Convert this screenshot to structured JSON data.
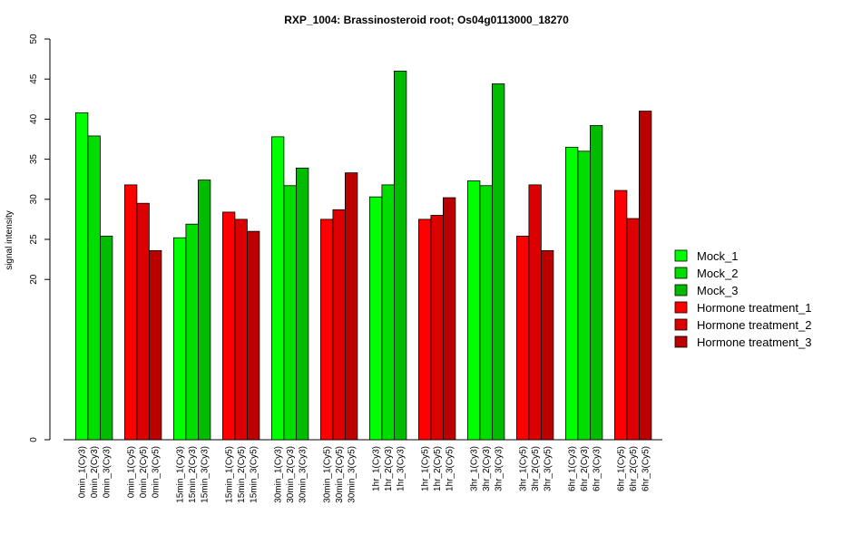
{
  "chart_data": {
    "type": "bar",
    "title": "RXP_1004: Brassinosteroid root; Os04g0113000_18270",
    "ylabel": "signal intensity",
    "xlabel": "",
    "y_ticks": [
      0,
      20,
      25,
      30,
      35,
      40,
      45,
      50
    ],
    "ylim": [
      0,
      50
    ],
    "grid": false,
    "legend_position": "right",
    "series": [
      {
        "name": "Mock_1",
        "color": "#00ff00"
      },
      {
        "name": "Mock_2",
        "color": "#00dd00"
      },
      {
        "name": "Mock_3",
        "color": "#00bb00"
      },
      {
        "name": "Hormone treatment_1",
        "color": "#ff0000"
      },
      {
        "name": "Hormone treatment_2",
        "color": "#dd0000"
      },
      {
        "name": "Hormone treatment_3",
        "color": "#bb0000"
      }
    ],
    "groups": [
      {
        "series": [
          0,
          1,
          2
        ],
        "labels": [
          "0min_1(Cy3)",
          "0min_2(Cy3)",
          "0min_3(Cy3)"
        ],
        "values": [
          40.8,
          37.9,
          25.4
        ]
      },
      {
        "series": [
          3,
          4,
          5
        ],
        "labels": [
          "0min_1(Cy5)",
          "0min_2(Cy5)",
          "0min_3(Cy5)"
        ],
        "values": [
          31.8,
          29.5,
          23.6
        ]
      },
      {
        "series": [
          0,
          1,
          2
        ],
        "labels": [
          "15min_1(Cy3)",
          "15min_2(Cy3)",
          "15min_3(Cy3)"
        ],
        "values": [
          25.2,
          26.9,
          32.4
        ]
      },
      {
        "series": [
          3,
          4,
          5
        ],
        "labels": [
          "15min_1(Cy5)",
          "15min_2(Cy5)",
          "15min_3(Cy5)"
        ],
        "values": [
          28.4,
          27.5,
          26.0
        ]
      },
      {
        "series": [
          0,
          1,
          2
        ],
        "labels": [
          "30min_1(Cy3)",
          "30min_2(Cy3)",
          "30min_3(Cy3)"
        ],
        "values": [
          37.8,
          31.7,
          33.9
        ]
      },
      {
        "series": [
          3,
          4,
          5
        ],
        "labels": [
          "30min_1(Cy5)",
          "30min_2(Cy5)",
          "30min_3(Cy5)"
        ],
        "values": [
          27.5,
          28.7,
          33.3
        ]
      },
      {
        "series": [
          0,
          1,
          2
        ],
        "labels": [
          "1hr_1(Cy3)",
          "1hr_2(Cy3)",
          "1hr_3(Cy3)"
        ],
        "values": [
          30.3,
          31.8,
          46.0
        ]
      },
      {
        "series": [
          3,
          4,
          5
        ],
        "labels": [
          "1hr_1(Cy5)",
          "1hr_2(Cy5)",
          "1hr_3(Cy5)"
        ],
        "values": [
          27.5,
          28.0,
          30.2
        ]
      },
      {
        "series": [
          0,
          1,
          2
        ],
        "labels": [
          "3hr_1(Cy3)",
          "3hr_2(Cy3)",
          "3hr_3(Cy3)"
        ],
        "values": [
          32.3,
          31.7,
          44.4
        ]
      },
      {
        "series": [
          3,
          4,
          5
        ],
        "labels": [
          "3hr_1(Cy5)",
          "3hr_2(Cy5)",
          "3hr_3(Cy5)"
        ],
        "values": [
          25.4,
          31.8,
          23.6
        ]
      },
      {
        "series": [
          0,
          1,
          2
        ],
        "labels": [
          "6hr_1(Cy3)",
          "6hr_2(Cy3)",
          "6hr_3(Cy3)"
        ],
        "values": [
          36.5,
          36.0,
          39.2
        ]
      },
      {
        "series": [
          3,
          4,
          5
        ],
        "labels": [
          "6hr_1(Cy5)",
          "6hr_2(Cy5)",
          "6hr_3(Cy5)"
        ],
        "values": [
          31.1,
          27.6,
          41.0
        ]
      }
    ]
  }
}
